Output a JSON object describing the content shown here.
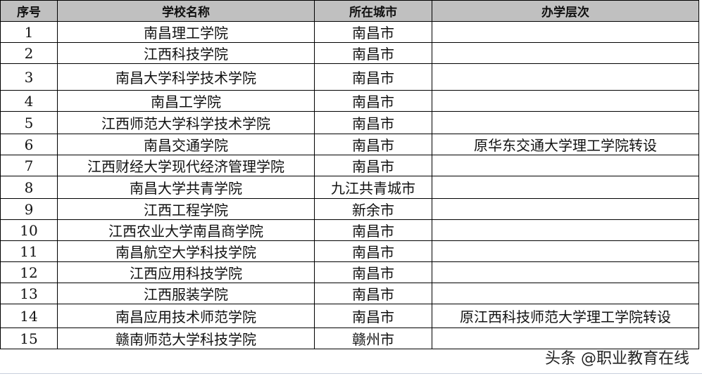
{
  "table": {
    "headers": [
      "序号",
      "学校名称",
      "所在城市",
      "办学层次"
    ],
    "rows": [
      [
        "1",
        "南昌理工学院",
        "南昌市",
        ""
      ],
      [
        "2",
        "江西科技学院",
        "南昌市",
        ""
      ],
      [
        "3",
        "南昌大学科学技术学院",
        "南昌市",
        ""
      ],
      [
        "4",
        "南昌工学院",
        "南昌市",
        ""
      ],
      [
        "5",
        "江西师范大学科学技术学院",
        "南昌市",
        ""
      ],
      [
        "6",
        "南昌交通学院",
        "南昌市",
        "原华东交通大学理工学院转设"
      ],
      [
        "7",
        "江西财经大学现代经济管理学院",
        "南昌市",
        ""
      ],
      [
        "8",
        "南昌大学共青学院",
        "九江共青城市",
        ""
      ],
      [
        "9",
        "江西工程学院",
        "新余市",
        ""
      ],
      [
        "10",
        "江西农业大学南昌商学院",
        "南昌市",
        ""
      ],
      [
        "11",
        "南昌航空大学科技学院",
        "南昌市",
        ""
      ],
      [
        "12",
        "江西应用科技学院",
        "南昌市",
        ""
      ],
      [
        "13",
        "江西服装学院",
        "南昌市",
        ""
      ],
      [
        "14",
        "南昌应用技术师范学院",
        "南昌市",
        "原江西科技师范大学理工学院转设"
      ],
      [
        "15",
        "赣南师范大学科技学院",
        "赣州市",
        ""
      ]
    ]
  },
  "watermark": "头条 @职业教育在线"
}
